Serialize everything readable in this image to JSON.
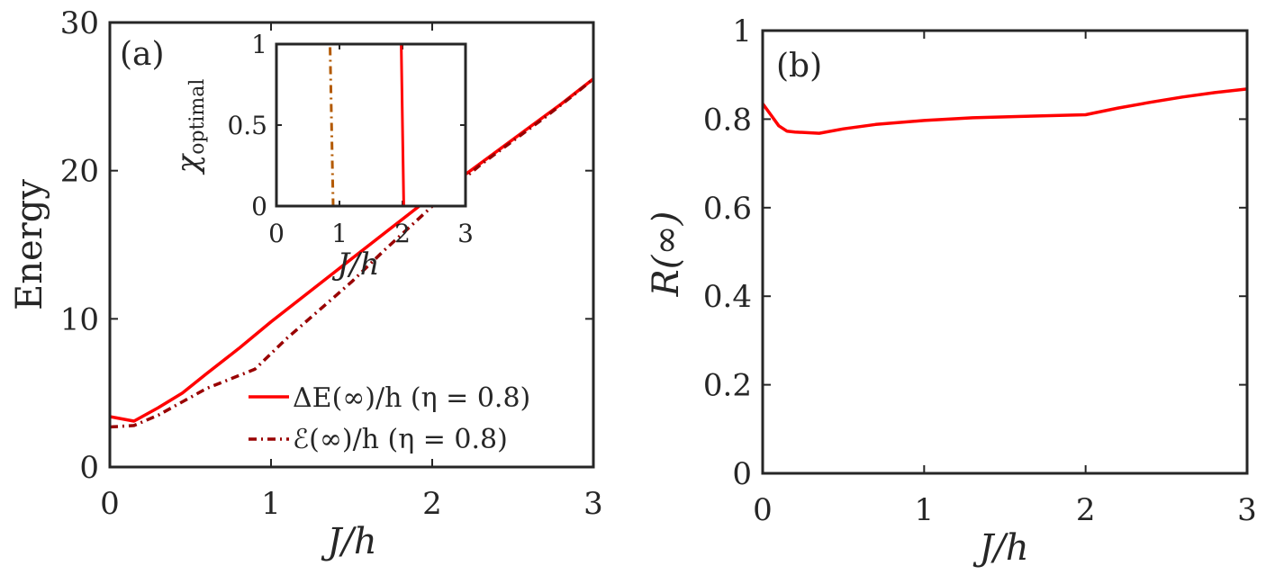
{
  "chart_data": [
    {
      "type": "line",
      "panel_label": "(a)",
      "xlabel": "J/h",
      "ylabel": "Energy",
      "xlim": [
        0,
        3
      ],
      "ylim": [
        0,
        30
      ],
      "xticks": [
        "0",
        "1",
        "2",
        "3"
      ],
      "yticks": [
        "0",
        "10",
        "20",
        "30"
      ],
      "legend_position": "bottom-right",
      "series": [
        {
          "name": "ΔE(∞)/h (η = 0.8)",
          "color": "#ff0000",
          "style": "solid",
          "x": [
            0,
            0.15,
            0.3,
            0.45,
            0.6,
            0.8,
            1.0,
            1.2,
            1.4,
            1.6,
            1.8,
            2.0,
            2.2,
            2.4,
            2.6,
            2.8,
            3.0
          ],
          "y": [
            3.4,
            3.1,
            4.0,
            5.0,
            6.3,
            8.0,
            9.8,
            11.5,
            13.2,
            14.9,
            16.6,
            18.3,
            19.7,
            21.3,
            22.9,
            24.5,
            26.2
          ]
        },
        {
          "name": "ℰ(∞)/h (η = 0.8)",
          "color": "#990000",
          "style": "dash-dot",
          "x": [
            0,
            0.15,
            0.3,
            0.45,
            0.6,
            0.9,
            1.1,
            1.3,
            1.5,
            1.7,
            1.9,
            2.1,
            2.3,
            2.5,
            2.7,
            2.9,
            3.0
          ],
          "y": [
            2.7,
            2.8,
            3.5,
            4.4,
            5.3,
            6.6,
            8.7,
            10.6,
            12.5,
            14.6,
            16.6,
            18.6,
            20.4,
            22.0,
            23.6,
            25.3,
            26.2
          ]
        }
      ],
      "inset": {
        "type": "line",
        "xlabel": "J/h",
        "ylabel": "χ_optimal",
        "ylabel_base": "χ",
        "ylabel_sub": "optimal",
        "xlim": [
          0,
          3
        ],
        "ylim": [
          0,
          1
        ],
        "xticks": [
          "0",
          "1",
          "2",
          "3"
        ],
        "yticks": [
          "0",
          "0.5",
          "1"
        ],
        "series": [
          {
            "color": "#ff0000",
            "style": "solid",
            "x": [
              0,
              1.98,
              1.98,
              2.02,
              2.02,
              3.0
            ],
            "y": [
              1,
              1,
              1,
              0,
              0,
              0
            ]
          },
          {
            "color": "#b35900",
            "style": "dash-dot",
            "x": [
              0,
              0.85,
              0.85,
              0.9,
              0.9,
              3.0
            ],
            "y": [
              1,
              1,
              1,
              0,
              0,
              0
            ]
          }
        ]
      }
    },
    {
      "type": "line",
      "panel_label": "(b)",
      "xlabel": "J/h",
      "ylabel": "R(∞)",
      "xlim": [
        0,
        3
      ],
      "ylim": [
        0,
        1
      ],
      "xticks": [
        "0",
        "1",
        "2",
        "3"
      ],
      "yticks": [
        "0",
        "0.2",
        "0.4",
        "0.6",
        "0.8",
        "1"
      ],
      "series": [
        {
          "color": "#ff0000",
          "style": "solid",
          "x": [
            0,
            0.05,
            0.1,
            0.15,
            0.2,
            0.35,
            0.5,
            0.7,
            1.0,
            1.3,
            1.6,
            2.0,
            2.2,
            2.4,
            2.6,
            2.8,
            3.0
          ],
          "y": [
            0.835,
            0.81,
            0.785,
            0.773,
            0.771,
            0.768,
            0.778,
            0.788,
            0.797,
            0.803,
            0.806,
            0.81,
            0.825,
            0.838,
            0.85,
            0.86,
            0.868
          ]
        }
      ]
    }
  ]
}
